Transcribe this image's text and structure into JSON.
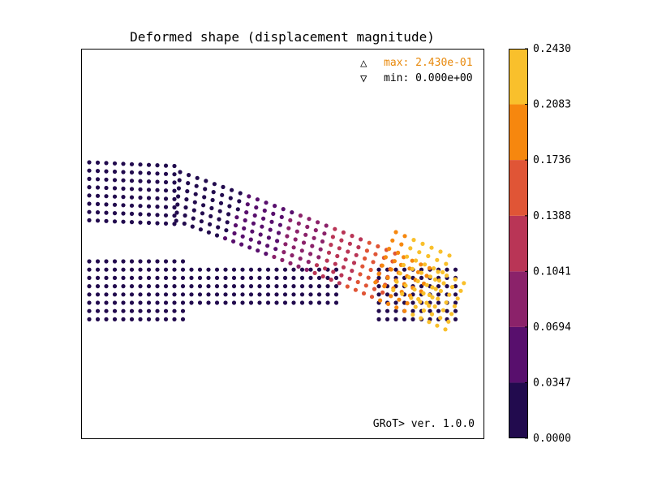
{
  "chart_data": {
    "type": "scatter",
    "title": "Deformed shape (displacement magnitude)",
    "xlabel": "",
    "ylabel": "",
    "max_label": "max: 2.430e-01",
    "min_label": "min: 0.000e+00",
    "max_marker": "△",
    "min_marker": "▽",
    "watermark": "GRoT> ver. 1.0.0",
    "colorbar": {
      "levels": [
        0.0,
        0.0347,
        0.0694,
        0.1041,
        0.1388,
        0.1736,
        0.2083,
        0.243
      ],
      "tick_labels": [
        "0.0000",
        "0.0347",
        "0.0694",
        "0.1041",
        "0.1388",
        "0.1736",
        "0.2083",
        "0.2430"
      ],
      "colors": [
        "#220b4e",
        "#580f6d",
        "#8b226a",
        "#b93556",
        "#e05536",
        "#f6870e",
        "#f9c02c"
      ]
    },
    "max_color": "#e8890c",
    "grid": false,
    "legend": "top-right"
  }
}
